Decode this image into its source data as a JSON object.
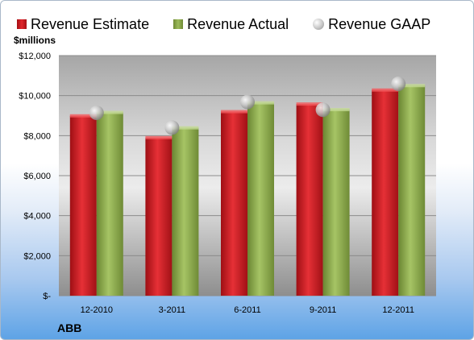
{
  "legend": {
    "estimate": "Revenue Estimate",
    "actual": "Revenue Actual",
    "gaap": "Revenue GAAP"
  },
  "unit_label": "$millions",
  "company_label": "ABB",
  "colors": {
    "estimate": "#d9272d",
    "actual": "#9bbb59",
    "gaap": "#bfbfbf"
  },
  "chart_data": {
    "type": "bar",
    "categories": [
      "12-2010",
      "3-2011",
      "6-2011",
      "9-2011",
      "12-2011"
    ],
    "series": [
      {
        "name": "Revenue Estimate",
        "values": [
          8990,
          7900,
          9200,
          9580,
          10280
        ]
      },
      {
        "name": "Revenue Actual",
        "values": [
          9160,
          8390,
          9640,
          9300,
          10500
        ]
      },
      {
        "name": "Revenue GAAP",
        "values": [
          9140,
          8400,
          9680,
          9290,
          10590
        ]
      }
    ],
    "ylim": [
      0,
      12000
    ],
    "y_ticks": [
      "$-",
      "$2,000",
      "$4,000",
      "$6,000",
      "$8,000",
      "$10,000",
      "$12,000"
    ],
    "ylabel": "$millions",
    "grid": true,
    "legend_position": "top"
  }
}
